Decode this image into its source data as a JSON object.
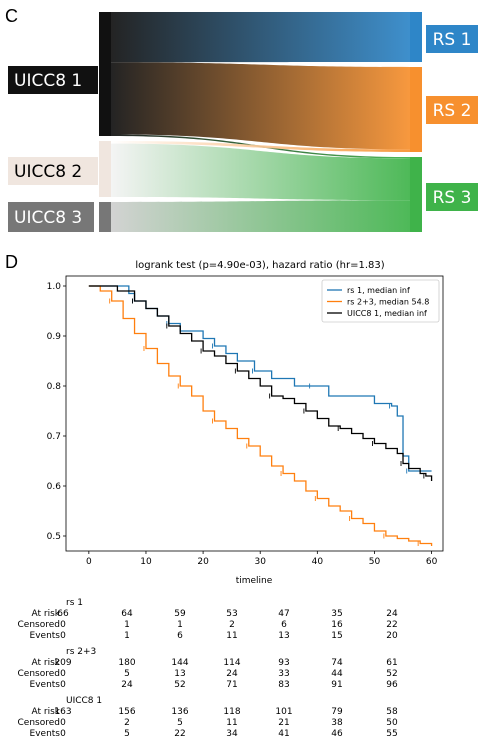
{
  "panel_c": {
    "letter": "C",
    "left_nodes": [
      {
        "label": "UICC8 1",
        "color": "#111111",
        "text_color": "#ffffff"
      },
      {
        "label": "UICC8 2",
        "color": "#f0e6df",
        "text_color": "#000000"
      },
      {
        "label": "UICC8 3",
        "color": "#777777",
        "text_color": "#ffffff"
      }
    ],
    "right_nodes": [
      {
        "label": "RS 1",
        "color": "#2e86c8",
        "text_color": "#ffffff"
      },
      {
        "label": "RS 2",
        "color": "#f7902e",
        "text_color": "#ffffff"
      },
      {
        "label": "RS 3",
        "color": "#3fb34a",
        "text_color": "#ffffff"
      }
    ]
  },
  "panel_d": {
    "letter": "D"
  },
  "chart_data": [
    {
      "type": "sankey",
      "nodes_left": [
        "UICC8 1",
        "UICC8 2",
        "UICC8 3"
      ],
      "nodes_right": [
        "RS 1",
        "RS 2",
        "RS 3"
      ],
      "flows": [
        {
          "from": "UICC8 1",
          "to": "RS 1",
          "value": 66
        },
        {
          "from": "UICC8 1",
          "to": "RS 2",
          "value": 95
        },
        {
          "from": "UICC8 1",
          "to": "RS 3",
          "value": 2
        },
        {
          "from": "UICC8 2",
          "to": "RS 2",
          "value": 3
        },
        {
          "from": "UICC8 2",
          "to": "RS 3",
          "value": 62
        },
        {
          "from": "UICC8 3",
          "to": "RS 3",
          "value": 47
        }
      ]
    },
    {
      "type": "line",
      "title": "logrank test (p=4.90e-03), hazard ratio (hr=1.83)",
      "xlabel": "timeline",
      "ylabel": "",
      "xlim": [
        -4,
        62
      ],
      "ylim": [
        0.47,
        1.02
      ],
      "xticks": [
        0,
        10,
        20,
        30,
        40,
        50,
        60
      ],
      "yticks": [
        0.5,
        0.6,
        0.7,
        0.8,
        0.9,
        1.0
      ],
      "ytick_labels": [
        "0.5",
        "0.6",
        "0.7",
        "0.8",
        "0.9",
        "1.0"
      ],
      "legend_position": "top-right",
      "series": [
        {
          "name": "rs 1, median inf",
          "color": "#1f77b4",
          "x": [
            0,
            7,
            8,
            10,
            12,
            14,
            16,
            20,
            22,
            24,
            26,
            29,
            32,
            36,
            39,
            42,
            50,
            53,
            54,
            55,
            56,
            58,
            60
          ],
          "y": [
            1.0,
            0.985,
            0.97,
            0.955,
            0.94,
            0.925,
            0.91,
            0.895,
            0.88,
            0.865,
            0.85,
            0.83,
            0.815,
            0.8,
            0.8,
            0.78,
            0.765,
            0.76,
            0.74,
            0.66,
            0.63,
            0.63,
            0.63
          ]
        },
        {
          "name": "rs 2+3, median 54.8",
          "color": "#ff7f0e",
          "x": [
            0,
            2,
            4,
            6,
            8,
            10,
            12,
            14,
            16,
            18,
            20,
            22,
            24,
            26,
            28,
            30,
            32,
            34,
            36,
            38,
            40,
            42,
            44,
            46,
            48,
            50,
            52,
            54,
            56,
            58,
            60
          ],
          "y": [
            1.0,
            0.99,
            0.97,
            0.935,
            0.905,
            0.875,
            0.845,
            0.82,
            0.8,
            0.78,
            0.75,
            0.73,
            0.715,
            0.695,
            0.68,
            0.66,
            0.64,
            0.625,
            0.61,
            0.59,
            0.575,
            0.56,
            0.55,
            0.535,
            0.525,
            0.51,
            0.5,
            0.495,
            0.49,
            0.485,
            0.48
          ]
        },
        {
          "name": "UICC8 1, median inf",
          "color": "#000000",
          "x": [
            0,
            5,
            8,
            10,
            12,
            14,
            16,
            18,
            20,
            22,
            24,
            26,
            28,
            30,
            32,
            34,
            36,
            38,
            40,
            42,
            44,
            46,
            48,
            50,
            52,
            54,
            55,
            56,
            58,
            59,
            60
          ],
          "y": [
            1.0,
            0.99,
            0.97,
            0.955,
            0.94,
            0.92,
            0.905,
            0.89,
            0.87,
            0.86,
            0.845,
            0.83,
            0.815,
            0.8,
            0.78,
            0.775,
            0.765,
            0.75,
            0.735,
            0.72,
            0.715,
            0.705,
            0.695,
            0.685,
            0.675,
            0.665,
            0.645,
            0.635,
            0.625,
            0.62,
            0.61
          ]
        }
      ]
    }
  ],
  "risk_table": {
    "groups": [
      {
        "name": "rs 1",
        "rows": [
          {
            "label": "At risk",
            "values": [
              "66",
              "64",
              "59",
              "53",
              "47",
              "35",
              "24"
            ]
          },
          {
            "label": "Censored",
            "values": [
              "0",
              "1",
              "1",
              "2",
              "6",
              "16",
              "22"
            ]
          },
          {
            "label": "Events",
            "values": [
              "0",
              "1",
              "6",
              "11",
              "13",
              "15",
              "20"
            ]
          }
        ]
      },
      {
        "name": "rs 2+3",
        "rows": [
          {
            "label": "At risk",
            "values": [
              "209",
              "180",
              "144",
              "114",
              "93",
              "74",
              "61"
            ]
          },
          {
            "label": "Censored",
            "values": [
              "0",
              "5",
              "13",
              "24",
              "33",
              "44",
              "52"
            ]
          },
          {
            "label": "Events",
            "values": [
              "0",
              "24",
              "52",
              "71",
              "83",
              "91",
              "96"
            ]
          }
        ]
      },
      {
        "name": "UICC8 1",
        "rows": [
          {
            "label": "At risk",
            "values": [
              "163",
              "156",
              "136",
              "118",
              "101",
              "79",
              "58"
            ]
          },
          {
            "label": "Censored",
            "values": [
              "0",
              "2",
              "5",
              "11",
              "21",
              "38",
              "50"
            ]
          },
          {
            "label": "Events",
            "values": [
              "0",
              "5",
              "22",
              "34",
              "41",
              "46",
              "55"
            ]
          }
        ]
      }
    ]
  }
}
